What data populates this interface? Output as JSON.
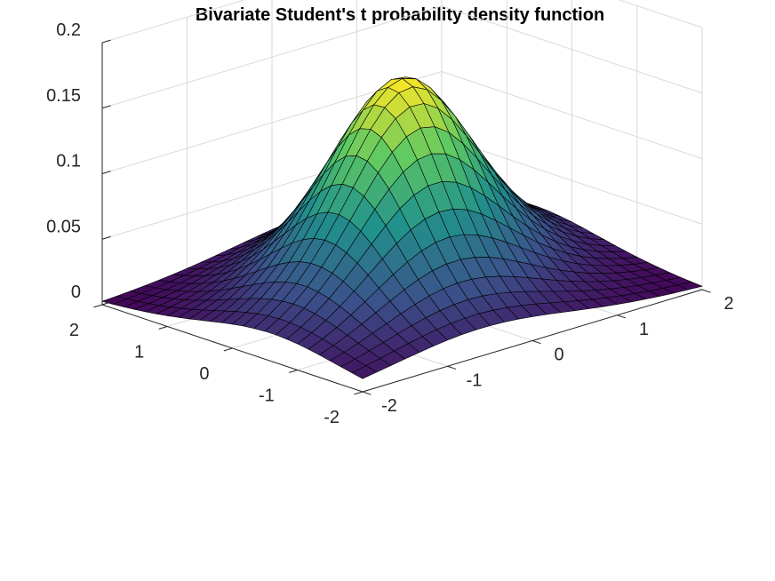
{
  "chart_data": {
    "type": "surface",
    "title": "Bivariate Student's t probability density function",
    "xlabel": "",
    "ylabel": "",
    "zlabel": "",
    "x_range": [
      -2,
      2
    ],
    "y_range": [
      -2,
      2
    ],
    "z_range": [
      0,
      0.2
    ],
    "grid_n": 25,
    "colormap": "viridis",
    "colormap_stops": [
      "#440154",
      "#3b528b",
      "#21918c",
      "#5ec962",
      "#fde725"
    ],
    "distribution": {
      "family": "bivariate student t",
      "mean": [
        0,
        0
      ],
      "covariance": [
        [
          1,
          0.3
        ],
        [
          0.3,
          1
        ]
      ],
      "dof": 5
    },
    "peak_value": 0.167,
    "x_ticks": [
      -2,
      -1,
      0,
      1,
      2
    ],
    "y_ticks": [
      -2,
      -1,
      0,
      1,
      2
    ],
    "z_ticks": [
      0,
      0.05,
      0.1,
      0.15,
      0.2
    ],
    "x_tick_labels": [
      "-2",
      "-1",
      "0",
      "1",
      "2"
    ],
    "y_tick_labels": [
      "-2",
      "-1",
      "0",
      "1",
      "2"
    ],
    "z_tick_labels": [
      "0",
      "0.05",
      "0.1",
      "0.15",
      "0.2"
    ],
    "grid": true
  }
}
